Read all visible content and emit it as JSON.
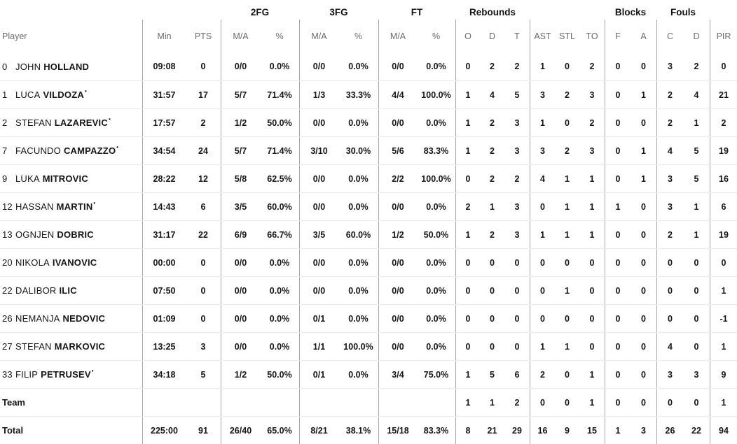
{
  "colors": {
    "background": "#ffffff",
    "text": "#161616",
    "muted_header_text": "#6c6c6c",
    "column_divider": "#a6a6a6",
    "row_separator": "#e9e9e9"
  },
  "table": {
    "starter_mark": "•",
    "group_headers": {
      "fg2": "2FG",
      "fg3": "3FG",
      "ft": "FT",
      "rebounds": "Rebounds",
      "blocks": "Blocks",
      "fouls": "Fouls"
    },
    "columns": {
      "player": "Player",
      "min": "Min",
      "pts": "PTS",
      "ma": "M/A",
      "pct": "%",
      "o": "O",
      "d": "D",
      "t": "T",
      "ast": "AST",
      "stl": "STL",
      "to": "TO",
      "f": "F",
      "a": "A",
      "c": "C",
      "pir": "PIR"
    },
    "rows": [
      {
        "number": "0",
        "first": "JOHN",
        "last": "HOLLAND",
        "starter": false,
        "min": "09:08",
        "pts": "0",
        "fg2ma": "0/0",
        "fg2pct": "0.0%",
        "fg3ma": "0/0",
        "fg3pct": "0.0%",
        "ftma": "0/0",
        "ftpct": "0.0%",
        "ro": "0",
        "rd": "2",
        "rt": "2",
        "ast": "1",
        "stl": "0",
        "to": "2",
        "bf": "0",
        "ba": "0",
        "fc": "3",
        "fd": "2",
        "pir": "0"
      },
      {
        "number": "1",
        "first": "LUCA",
        "last": "VILDOZA",
        "starter": true,
        "min": "31:57",
        "pts": "17",
        "fg2ma": "5/7",
        "fg2pct": "71.4%",
        "fg3ma": "1/3",
        "fg3pct": "33.3%",
        "ftma": "4/4",
        "ftpct": "100.0%",
        "ro": "1",
        "rd": "4",
        "rt": "5",
        "ast": "3",
        "stl": "2",
        "to": "3",
        "bf": "0",
        "ba": "1",
        "fc": "2",
        "fd": "4",
        "pir": "21"
      },
      {
        "number": "2",
        "first": "STEFAN",
        "last": "LAZAREVIC",
        "starter": true,
        "min": "17:57",
        "pts": "2",
        "fg2ma": "1/2",
        "fg2pct": "50.0%",
        "fg3ma": "0/0",
        "fg3pct": "0.0%",
        "ftma": "0/0",
        "ftpct": "0.0%",
        "ro": "1",
        "rd": "2",
        "rt": "3",
        "ast": "1",
        "stl": "0",
        "to": "2",
        "bf": "0",
        "ba": "0",
        "fc": "2",
        "fd": "1",
        "pir": "2"
      },
      {
        "number": "7",
        "first": "FACUNDO",
        "last": "CAMPAZZO",
        "starter": true,
        "min": "34:54",
        "pts": "24",
        "fg2ma": "5/7",
        "fg2pct": "71.4%",
        "fg3ma": "3/10",
        "fg3pct": "30.0%",
        "ftma": "5/6",
        "ftpct": "83.3%",
        "ro": "1",
        "rd": "2",
        "rt": "3",
        "ast": "3",
        "stl": "2",
        "to": "3",
        "bf": "0",
        "ba": "1",
        "fc": "4",
        "fd": "5",
        "pir": "19"
      },
      {
        "number": "9",
        "first": "LUKA",
        "last": "MITROVIC",
        "starter": false,
        "min": "28:22",
        "pts": "12",
        "fg2ma": "5/8",
        "fg2pct": "62.5%",
        "fg3ma": "0/0",
        "fg3pct": "0.0%",
        "ftma": "2/2",
        "ftpct": "100.0%",
        "ro": "0",
        "rd": "2",
        "rt": "2",
        "ast": "4",
        "stl": "1",
        "to": "1",
        "bf": "0",
        "ba": "1",
        "fc": "3",
        "fd": "5",
        "pir": "16"
      },
      {
        "number": "12",
        "first": "HASSAN",
        "last": "MARTIN",
        "starter": true,
        "min": "14:43",
        "pts": "6",
        "fg2ma": "3/5",
        "fg2pct": "60.0%",
        "fg3ma": "0/0",
        "fg3pct": "0.0%",
        "ftma": "0/0",
        "ftpct": "0.0%",
        "ro": "2",
        "rd": "1",
        "rt": "3",
        "ast": "0",
        "stl": "1",
        "to": "1",
        "bf": "1",
        "ba": "0",
        "fc": "3",
        "fd": "1",
        "pir": "6"
      },
      {
        "number": "13",
        "first": "OGNJEN",
        "last": "DOBRIC",
        "starter": false,
        "min": "31:17",
        "pts": "22",
        "fg2ma": "6/9",
        "fg2pct": "66.7%",
        "fg3ma": "3/5",
        "fg3pct": "60.0%",
        "ftma": "1/2",
        "ftpct": "50.0%",
        "ro": "1",
        "rd": "2",
        "rt": "3",
        "ast": "1",
        "stl": "1",
        "to": "1",
        "bf": "0",
        "ba": "0",
        "fc": "2",
        "fd": "1",
        "pir": "19"
      },
      {
        "number": "20",
        "first": "NIKOLA",
        "last": "IVANOVIC",
        "starter": false,
        "min": "00:00",
        "pts": "0",
        "fg2ma": "0/0",
        "fg2pct": "0.0%",
        "fg3ma": "0/0",
        "fg3pct": "0.0%",
        "ftma": "0/0",
        "ftpct": "0.0%",
        "ro": "0",
        "rd": "0",
        "rt": "0",
        "ast": "0",
        "stl": "0",
        "to": "0",
        "bf": "0",
        "ba": "0",
        "fc": "0",
        "fd": "0",
        "pir": "0"
      },
      {
        "number": "22",
        "first": "DALIBOR",
        "last": "ILIC",
        "starter": false,
        "min": "07:50",
        "pts": "0",
        "fg2ma": "0/0",
        "fg2pct": "0.0%",
        "fg3ma": "0/0",
        "fg3pct": "0.0%",
        "ftma": "0/0",
        "ftpct": "0.0%",
        "ro": "0",
        "rd": "0",
        "rt": "0",
        "ast": "0",
        "stl": "1",
        "to": "0",
        "bf": "0",
        "ba": "0",
        "fc": "0",
        "fd": "0",
        "pir": "1"
      },
      {
        "number": "26",
        "first": "NEMANJA",
        "last": "NEDOVIC",
        "starter": false,
        "min": "01:09",
        "pts": "0",
        "fg2ma": "0/0",
        "fg2pct": "0.0%",
        "fg3ma": "0/1",
        "fg3pct": "0.0%",
        "ftma": "0/0",
        "ftpct": "0.0%",
        "ro": "0",
        "rd": "0",
        "rt": "0",
        "ast": "0",
        "stl": "0",
        "to": "0",
        "bf": "0",
        "ba": "0",
        "fc": "0",
        "fd": "0",
        "pir": "-1"
      },
      {
        "number": "27",
        "first": "STEFAN",
        "last": "MARKOVIC",
        "starter": false,
        "min": "13:25",
        "pts": "3",
        "fg2ma": "0/0",
        "fg2pct": "0.0%",
        "fg3ma": "1/1",
        "fg3pct": "100.0%",
        "ftma": "0/0",
        "ftpct": "0.0%",
        "ro": "0",
        "rd": "0",
        "rt": "0",
        "ast": "1",
        "stl": "1",
        "to": "0",
        "bf": "0",
        "ba": "0",
        "fc": "4",
        "fd": "0",
        "pir": "1"
      },
      {
        "number": "33",
        "first": "FILIP",
        "last": "PETRUSEV",
        "starter": true,
        "min": "34:18",
        "pts": "5",
        "fg2ma": "1/2",
        "fg2pct": "50.0%",
        "fg3ma": "0/1",
        "fg3pct": "0.0%",
        "ftma": "3/4",
        "ftpct": "75.0%",
        "ro": "1",
        "rd": "5",
        "rt": "6",
        "ast": "2",
        "stl": "0",
        "to": "1",
        "bf": "0",
        "ba": "0",
        "fc": "3",
        "fd": "3",
        "pir": "9"
      },
      {
        "label": "Team",
        "ro": "1",
        "rd": "1",
        "rt": "2",
        "ast": "0",
        "stl": "0",
        "to": "1",
        "bf": "0",
        "ba": "0",
        "fc": "0",
        "fd": "0",
        "pir": "1"
      },
      {
        "label": "Total",
        "min": "225:00",
        "pts": "91",
        "fg2ma": "26/40",
        "fg2pct": "65.0%",
        "fg3ma": "8/21",
        "fg3pct": "38.1%",
        "ftma": "15/18",
        "ftpct": "83.3%",
        "ro": "8",
        "rd": "21",
        "rt": "29",
        "ast": "16",
        "stl": "9",
        "to": "15",
        "bf": "1",
        "ba": "3",
        "fc": "26",
        "fd": "22",
        "pir": "94"
      }
    ]
  }
}
